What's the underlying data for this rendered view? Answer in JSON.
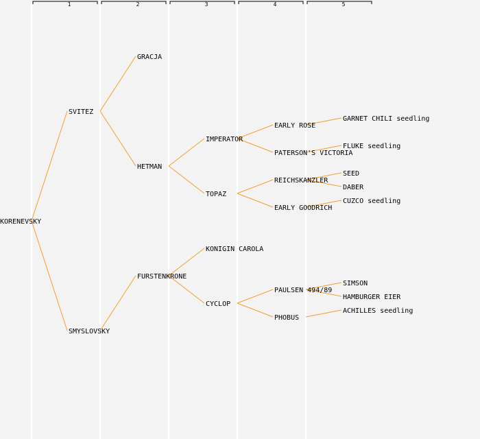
{
  "generations": [
    "1",
    "2",
    "3",
    "4",
    "5"
  ],
  "nodes": [
    {
      "id": "korenevsky",
      "label": "KORENEVSKY",
      "gen": 0,
      "slot": 8
    },
    {
      "id": "svitez",
      "label": "SVITEZ",
      "gen": 1,
      "slot": 4,
      "parent": "korenevsky"
    },
    {
      "id": "smyslovsky",
      "label": "SMYSLOVSKY",
      "gen": 1,
      "slot": 12,
      "parent": "korenevsky"
    },
    {
      "id": "gracja",
      "label": "GRACJA",
      "gen": 2,
      "slot": 2,
      "parent": "svitez"
    },
    {
      "id": "hetman",
      "label": "HETMAN",
      "gen": 2,
      "slot": 6,
      "parent": "svitez"
    },
    {
      "id": "furstenkrone",
      "label": "FURSTENKRONE",
      "gen": 2,
      "slot": 10,
      "parent": "smyslovsky"
    },
    {
      "id": "imperator",
      "label": "IMPERATOR",
      "gen": 3,
      "slot": 5,
      "parent": "hetman"
    },
    {
      "id": "topaz",
      "label": "TOPAZ",
      "gen": 3,
      "slot": 7,
      "parent": "hetman"
    },
    {
      "id": "konigin-carola",
      "label": "KONIGIN CAROLA",
      "gen": 3,
      "slot": 9,
      "parent": "furstenkrone"
    },
    {
      "id": "cyclop",
      "label": "CYCLOP",
      "gen": 3,
      "slot": 11,
      "parent": "furstenkrone"
    },
    {
      "id": "early-rose",
      "label": "EARLY ROSE",
      "gen": 4,
      "slot": 4.5,
      "parent": "imperator"
    },
    {
      "id": "patersons-victoria",
      "label": "PATERSON'S VICTORIA",
      "gen": 4,
      "slot": 5.5,
      "parent": "imperator"
    },
    {
      "id": "reichskanzler",
      "label": "REICHSKANZLER",
      "gen": 4,
      "slot": 6.5,
      "parent": "topaz"
    },
    {
      "id": "early-goodrich",
      "label": "EARLY GOODRICH",
      "gen": 4,
      "slot": 7.5,
      "parent": "topaz"
    },
    {
      "id": "paulsen",
      "label": "PAULSEN 494/89",
      "gen": 4,
      "slot": 10.5,
      "parent": "cyclop"
    },
    {
      "id": "phobus",
      "label": "PHOBUS",
      "gen": 4,
      "slot": 11.5,
      "parent": "cyclop"
    },
    {
      "id": "garnet-chili",
      "label": "GARNET CHILI seedling",
      "gen": 5,
      "slot": 4.25,
      "parent": "early-rose"
    },
    {
      "id": "fluke",
      "label": "FLUKE seedling",
      "gen": 5,
      "slot": 5.25,
      "parent": "patersons-victoria"
    },
    {
      "id": "seed",
      "label": "SEED",
      "gen": 5,
      "slot": 6.25,
      "parent": "reichskanzler"
    },
    {
      "id": "daber",
      "label": "DABER",
      "gen": 5,
      "slot": 6.75,
      "parent": "reichskanzler"
    },
    {
      "id": "cuzco",
      "label": "CUZCO seedling",
      "gen": 5,
      "slot": 7.25,
      "parent": "early-goodrich"
    },
    {
      "id": "simson",
      "label": "SIMSON",
      "gen": 5,
      "slot": 10.25,
      "parent": "paulsen"
    },
    {
      "id": "hamburger-eier",
      "label": "HAMBURGER EIER",
      "gen": 5,
      "slot": 10.75,
      "parent": "paulsen"
    },
    {
      "id": "achilles",
      "label": "ACHILLES seedling",
      "gen": 5,
      "slot": 11.25,
      "parent": "phobus"
    }
  ],
  "colors": {
    "edge": "#f0a030",
    "background": "#f3f3f3",
    "column_line": "#ffffff"
  }
}
